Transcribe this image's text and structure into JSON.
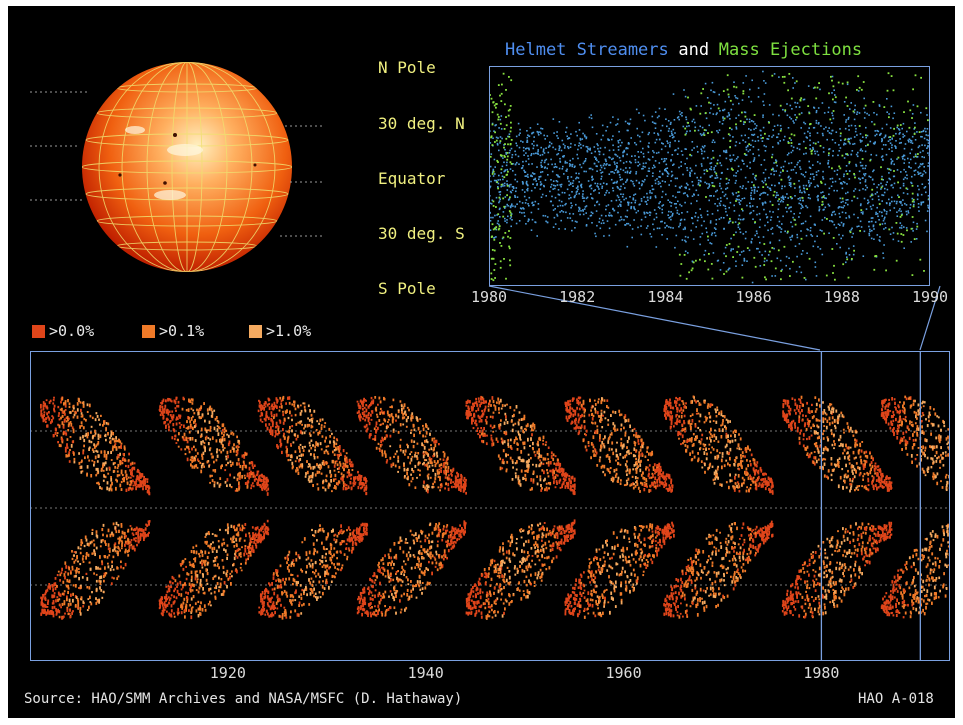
{
  "upper_title": {
    "part1": "Helmet Streamers",
    "part2": "and",
    "part3": "Mass Ejections",
    "color1": "#4f8ef0",
    "color2": "#ffffff",
    "color3": "#7ee040"
  },
  "latitude_labels": [
    "N Pole",
    "30 deg. N",
    "Equator",
    "30 deg. S",
    "S Pole"
  ],
  "legend": [
    {
      "label": ">0.0%",
      "color": "#e0451a"
    },
    {
      "label": ">0.1%",
      "color": "#f07a28"
    },
    {
      "label": ">1.0%",
      "color": "#f5aa60"
    }
  ],
  "footer": {
    "source": "Source: HAO/SMM Archives and NASA/MSFC (D. Hathaway)",
    "id": "HAO A-018"
  },
  "colors": {
    "background": "#000000",
    "label_yellow": "#f0f080",
    "streamer_blue": "#4a9ad8",
    "cme_green": "#88e040",
    "sunspot_orange": "#f07a28",
    "connector": "#7aa0e0"
  },
  "chart_data": [
    {
      "type": "scatter",
      "title": "Helmet Streamers and Mass Ejections",
      "x_ticks": [
        1980,
        1982,
        1984,
        1986,
        1988,
        1990
      ],
      "xlim": [
        1980,
        1990
      ],
      "y_ticks": [
        "N Pole",
        "30 deg. N",
        "Equator",
        "30 deg. S",
        "S Pole"
      ],
      "series": [
        {
          "name": "Helmet Streamers",
          "color": "#4a9ad8"
        },
        {
          "name": "Mass Ejections",
          "color": "#88e040"
        }
      ]
    },
    {
      "type": "heatmap",
      "x_ticks": [
        1920,
        1940,
        1960,
        1980
      ],
      "xlim": [
        1900,
        1993
      ],
      "legend": [
        ">0.0%",
        ">0.1%",
        ">1.0%"
      ],
      "cycle_minima": [
        1901,
        1913,
        1923,
        1933,
        1944,
        1954,
        1964,
        1976,
        1986
      ],
      "cycle_maxima": [
        1906,
        1917,
        1928,
        1937,
        1947,
        1957,
        1968,
        1979,
        1989
      ],
      "highlight_range": [
        1980,
        1990
      ]
    }
  ]
}
